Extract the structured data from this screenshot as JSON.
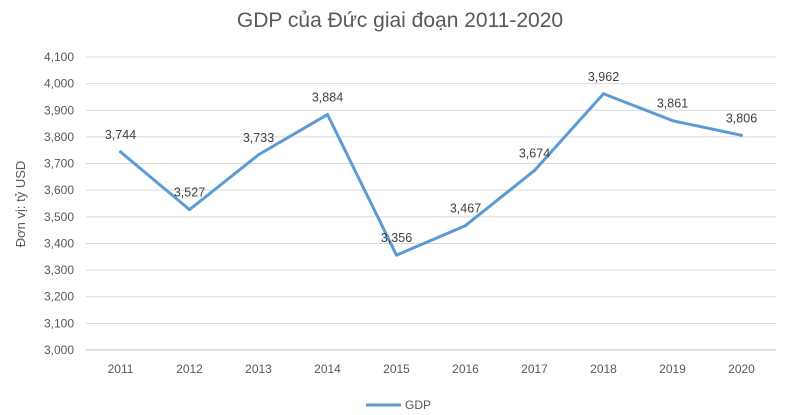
{
  "chart_data": {
    "type": "line",
    "title": "GDP của Đức giai đoạn 2011-2020",
    "ylabel": "Đơn vị: tỷ USD",
    "xlabel": "",
    "categories": [
      "2011",
      "2012",
      "2013",
      "2014",
      "2015",
      "2016",
      "2017",
      "2018",
      "2019",
      "2020"
    ],
    "series": [
      {
        "name": "GDP",
        "color": "#5b9bd5",
        "values": [
          3744,
          3527,
          3733,
          3884,
          3356,
          3467,
          3674,
          3962,
          3861,
          3806
        ],
        "labels": [
          "3,744",
          "3,527",
          "3,733",
          "3,884",
          "3,356",
          "3,467",
          "3,674",
          "3,962",
          "3,861",
          "3,806"
        ]
      }
    ],
    "ylim": [
      3000,
      4100
    ],
    "yticks": [
      3000,
      3100,
      3200,
      3300,
      3400,
      3500,
      3600,
      3700,
      3800,
      3900,
      4000,
      4100
    ],
    "ytick_labels": [
      "3,000",
      "3,100",
      "3,200",
      "3,300",
      "3,400",
      "3,500",
      "3,600",
      "3,700",
      "3,800",
      "3,900",
      "4,000",
      "4,100"
    ],
    "grid": true,
    "legend_position": "bottom"
  }
}
